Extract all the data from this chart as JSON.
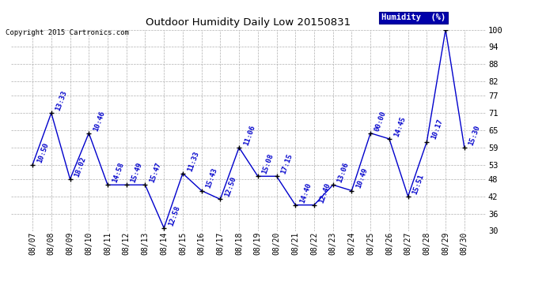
{
  "title": "Outdoor Humidity Daily Low 20150831",
  "copyright": "Copyright 2015 Cartronics.com",
  "legend_label": "Humidity  (%)",
  "dates": [
    "08/07",
    "08/08",
    "08/09",
    "08/10",
    "08/11",
    "08/12",
    "08/13",
    "08/14",
    "08/15",
    "08/16",
    "08/17",
    "08/18",
    "08/19",
    "08/20",
    "08/21",
    "08/22",
    "08/23",
    "08/24",
    "08/25",
    "08/26",
    "08/27",
    "08/28",
    "08/29",
    "08/30"
  ],
  "values": [
    53,
    71,
    48,
    64,
    46,
    46,
    46,
    31,
    50,
    44,
    41,
    59,
    49,
    49,
    39,
    39,
    46,
    44,
    64,
    62,
    42,
    61,
    100,
    59
  ],
  "time_labels": [
    "10:50",
    "13:33",
    "18:02",
    "10:46",
    "14:58",
    "15:49",
    "15:47",
    "12:58",
    "11:33",
    "15:43",
    "12:50",
    "11:06",
    "15:08",
    "17:15",
    "14:40",
    "12:40",
    "13:06",
    "10:49",
    "00:00",
    "14:45",
    "15:51",
    "10:17",
    "",
    "15:30"
  ],
  "line_color": "#0000cc",
  "marker_color": "#000000",
  "bg_color": "#ffffff",
  "plot_bg_color": "#ffffff",
  "grid_color": "#b0b0b0",
  "legend_bg": "#0000aa",
  "legend_text_color": "#ffffff",
  "title_color": "#000000",
  "label_color": "#0000cc",
  "copyright_color": "#000000",
  "ylim": [
    30,
    100
  ],
  "yticks": [
    30,
    36,
    42,
    48,
    53,
    59,
    65,
    71,
    77,
    82,
    88,
    94,
    100
  ]
}
